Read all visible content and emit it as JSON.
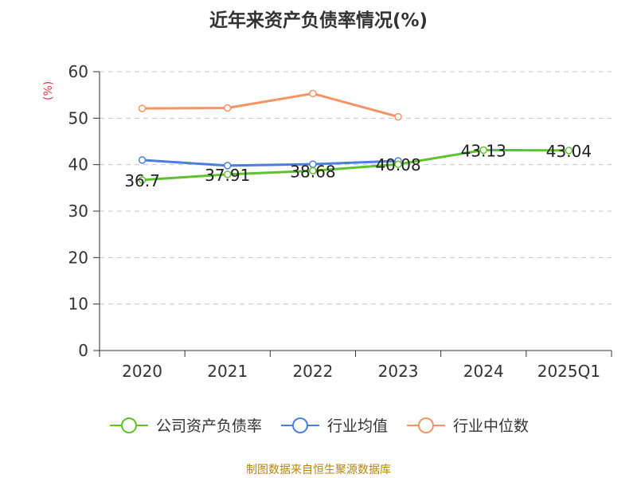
{
  "chart_data": {
    "type": "line",
    "title": "近年来资产负债率情况(%)",
    "ylabel": "(%)",
    "xlabel": "",
    "categories": [
      "2020",
      "2021",
      "2022",
      "2023",
      "2024",
      "2025Q1"
    ],
    "ylim": [
      0,
      60
    ],
    "yticks": [
      0,
      10,
      20,
      30,
      40,
      50,
      60
    ],
    "grid": true,
    "legend_position": "bottom",
    "series": [
      {
        "name": "公司资产负债率",
        "color": "#5ec32f",
        "values": [
          36.7,
          37.91,
          38.68,
          40.08,
          43.13,
          43.04
        ],
        "labels": [
          "36.7",
          "37.91",
          "38.68",
          "40.08",
          "43.13",
          "43.04"
        ]
      },
      {
        "name": "行业均值",
        "color": "#4a7fe0",
        "values": [
          41.0,
          39.8,
          40.1,
          40.8,
          null,
          null
        ]
      },
      {
        "name": "行业中位数",
        "color": "#f59464",
        "values": [
          52.1,
          52.2,
          55.3,
          50.3,
          null,
          null
        ]
      }
    ]
  },
  "source_note": "制图数据来自恒生聚源数据库"
}
